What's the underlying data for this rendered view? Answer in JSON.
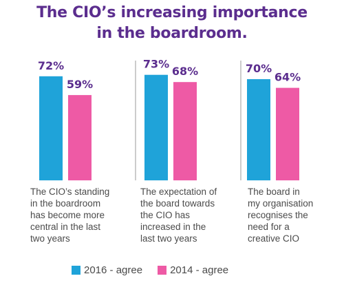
{
  "chart_data": {
    "type": "bar",
    "title_lines": [
      "The CIO’s increasing importance",
      "in the boardroom."
    ],
    "categories": [
      "The CIO’s standing\nin the boardroom\nhas become more\ncentral in the last\ntwo years",
      "The expectation of\nthe board towards\nthe CIO has\nincreased in the\nlast two years",
      "The board in\nmy organisation\nrecognises the\nneed for a\ncreative CIO"
    ],
    "series": [
      {
        "name": "2016 - agree",
        "color": "#1fa3d9",
        "values": [
          72,
          73,
          70
        ],
        "labels": [
          "72%",
          "73%",
          "70%"
        ]
      },
      {
        "name": "2014 - agree",
        "color": "#ee5aa5",
        "values": [
          59,
          68,
          64
        ],
        "labels": [
          "59%",
          "68%",
          "64%"
        ]
      }
    ],
    "ylim": [
      0,
      100
    ],
    "grid": false,
    "legend_position": "bottom",
    "label_color": "#5b2d8e",
    "divider_color": "#999999"
  }
}
